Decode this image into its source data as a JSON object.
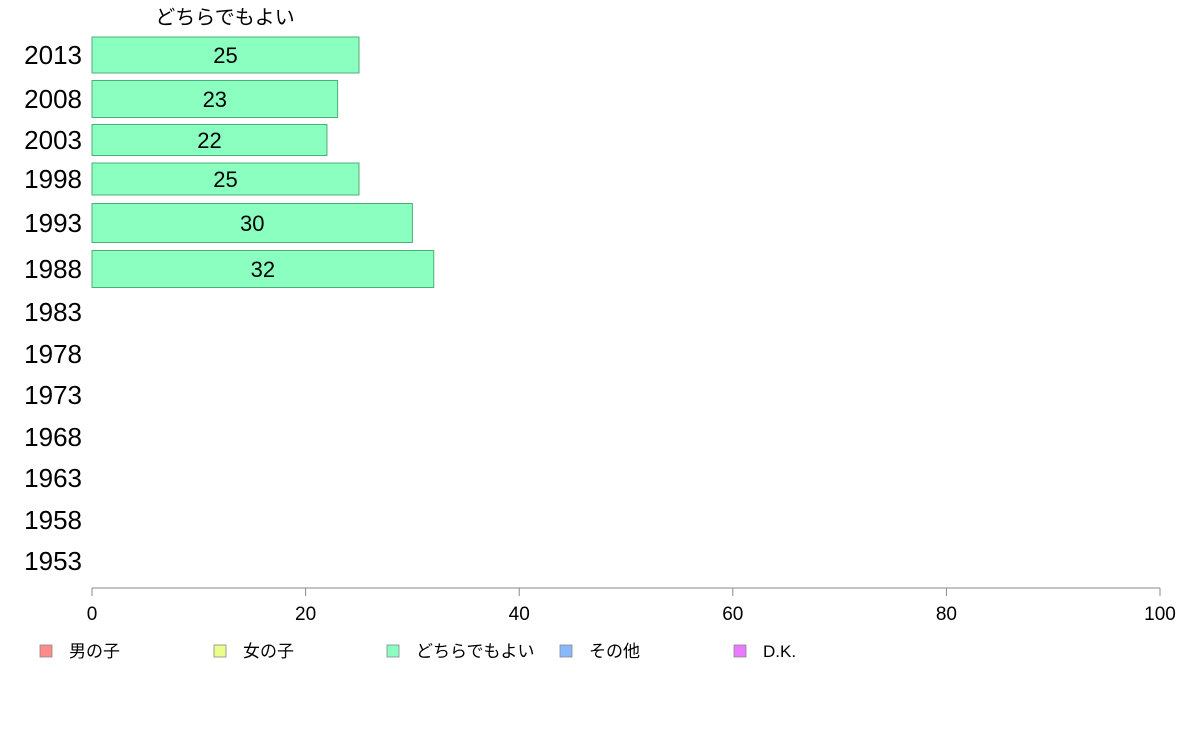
{
  "chart_data": {
    "type": "bar",
    "orientation": "horizontal",
    "series_title": "どちらでもよい",
    "categories": [
      "2013",
      "2008",
      "2003",
      "1998",
      "1993",
      "1988",
      "1983",
      "1978",
      "1973",
      "1968",
      "1963",
      "1958",
      "1953"
    ],
    "series": [
      {
        "name": "どちらでもよい",
        "color": "#8affc0",
        "values": [
          25,
          23,
          22,
          25,
          30,
          32,
          null,
          null,
          null,
          null,
          null,
          null,
          null
        ]
      }
    ],
    "bar_labels": [
      "25",
      "23",
      "22",
      "25",
      "30",
      "32"
    ],
    "xlim": [
      0,
      100
    ],
    "xticks": [
      0,
      20,
      40,
      60,
      80,
      100
    ],
    "grid": false,
    "legend_position": "bottom",
    "legend": [
      {
        "label": "男の子",
        "color": "#ff8c8c"
      },
      {
        "label": "女の子",
        "color": "#e9ff8a"
      },
      {
        "label": "どちらでもよい",
        "color": "#8affc0"
      },
      {
        "label": "その他",
        "color": "#8ab8ff"
      },
      {
        "label": "D.K.",
        "color": "#ea7aff"
      }
    ],
    "colors": {
      "bar_stroke": "#4caf7a",
      "axis": "#888888"
    }
  }
}
